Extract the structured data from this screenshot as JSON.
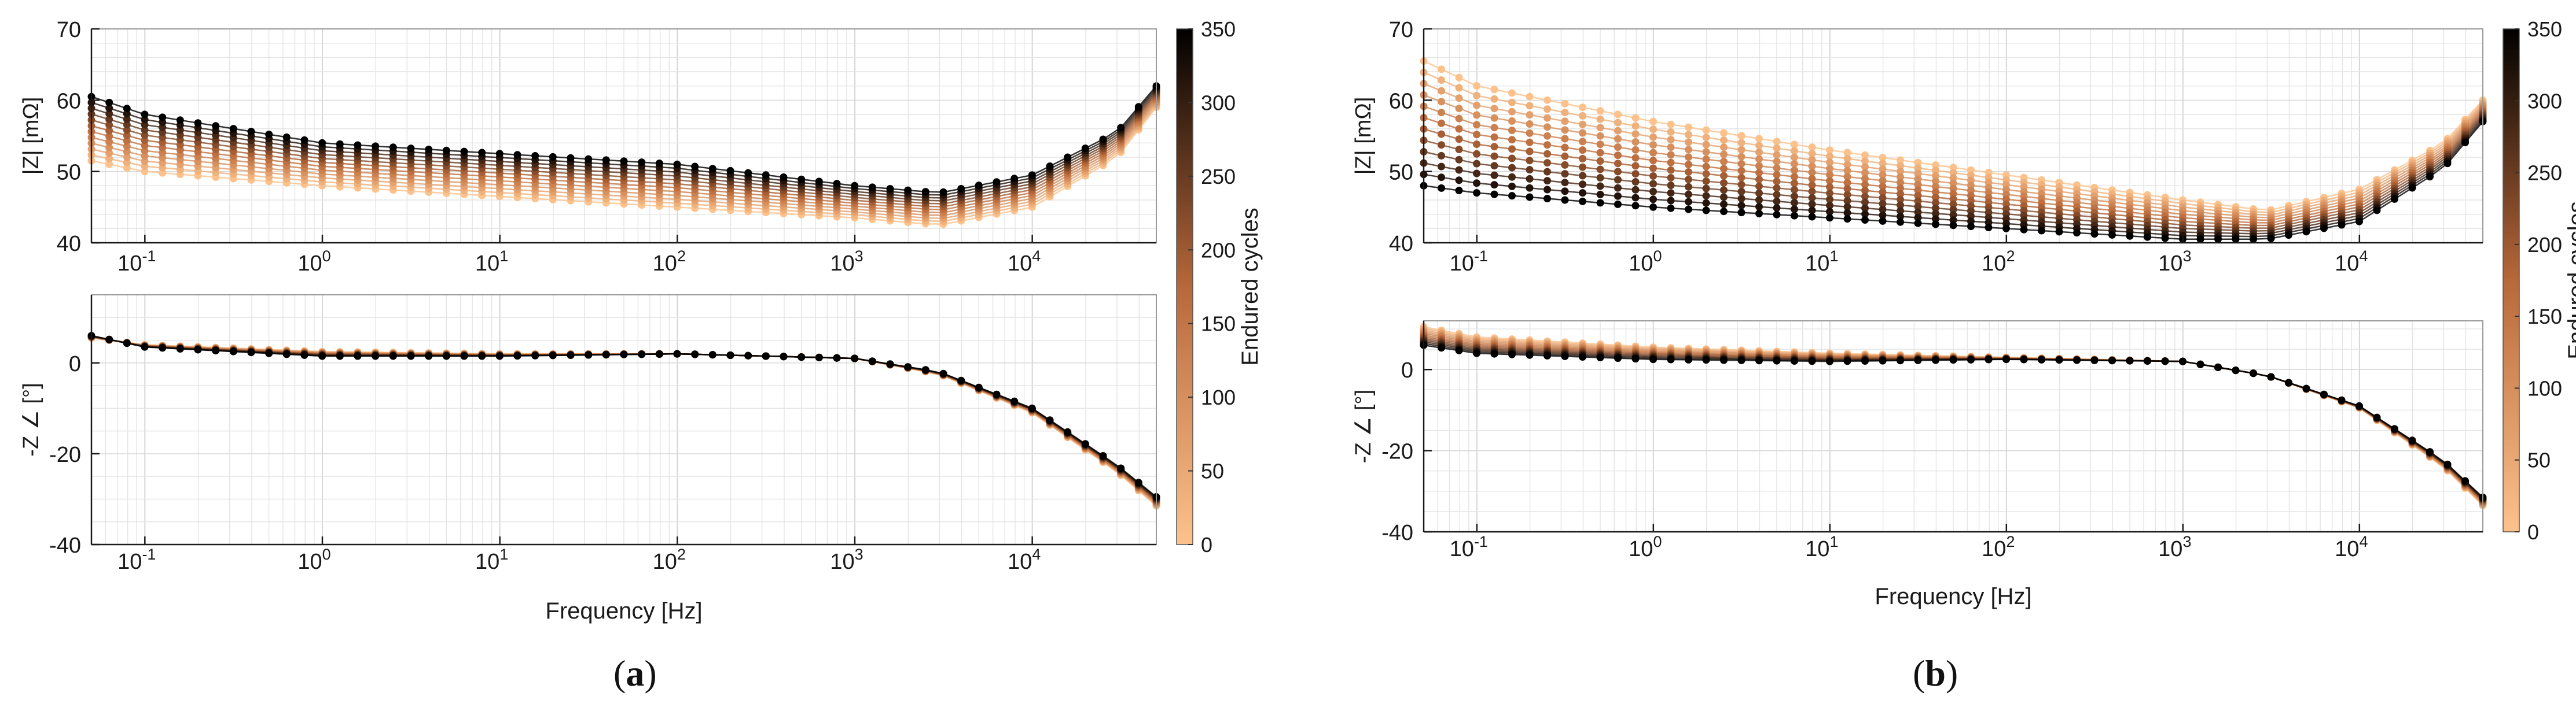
{
  "figure": {
    "subfigure_labels": [
      "a",
      "b"
    ]
  },
  "colors": {
    "cycle_low": "#fdc28c",
    "cycle_mid": "#b8683a",
    "cycle_high": "#000000",
    "grid": "#e4e4e4",
    "axis": "#1a1a1a"
  },
  "chart_data": [
    {
      "id": "a",
      "type": "line",
      "panels": [
        {
          "name": "magnitude",
          "ylabel": "|Z| [mΩ]",
          "xlabel": "",
          "xscale": "log",
          "xlim": [
            0.05,
            50000
          ],
          "ylim": [
            40,
            70
          ],
          "yticks": [
            40,
            50,
            60,
            70
          ],
          "grid": true,
          "envelope": {
            "x": [
              0.05,
              0.1,
              1,
              10,
              100,
              1000,
              3000,
              10000,
              30000,
              50000
            ],
            "cycle_0": [
              51.5,
              50.0,
              48.0,
              46.5,
              45.0,
              43.5,
              42.5,
              45.0,
              52.0,
              59.0
            ],
            "cycle_350": [
              60.5,
              58.0,
              54.0,
              52.5,
              51.0,
              48.0,
              47.0,
              49.5,
              55.5,
              62.0
            ]
          }
        },
        {
          "name": "phase",
          "ylabel": "-Z ∠ [°]",
          "xlabel": "Frequency [Hz]",
          "xscale": "log",
          "xlim": [
            0.05,
            50000
          ],
          "ylim": [
            -40,
            15
          ],
          "yticks": [
            -40,
            -20,
            0
          ],
          "grid": true,
          "envelope": {
            "x": [
              0.05,
              0.1,
              1,
              10,
              100,
              1000,
              3000,
              10000,
              30000,
              50000
            ],
            "cycle_0": [
              5.5,
              4.0,
              2.5,
              2.0,
              2.0,
              1.0,
              -2.5,
              -11.0,
              -24.0,
              -31.5
            ],
            "cycle_350": [
              6.0,
              3.5,
              1.5,
              1.5,
              2.0,
              1.0,
              -2.0,
              -10.0,
              -22.5,
              -29.5
            ]
          }
        }
      ],
      "colorbar": {
        "label": "Endured cycles",
        "range": [
          0,
          350
        ],
        "ticks": [
          0,
          50,
          100,
          150,
          200,
          250,
          300,
          350
        ]
      },
      "xtick_labels": [
        "10-1",
        "100",
        "101",
        "102",
        "103",
        "104"
      ],
      "n_cycle_curves": 12
    },
    {
      "id": "b",
      "type": "line",
      "panels": [
        {
          "name": "magnitude",
          "ylabel": "|Z| [mΩ]",
          "xlabel": "",
          "xscale": "log",
          "xlim": [
            0.05,
            50000
          ],
          "ylim": [
            40,
            70
          ],
          "yticks": [
            40,
            50,
            60,
            70
          ],
          "grid": true,
          "envelope": {
            "x": [
              0.05,
              0.1,
              1,
              10,
              100,
              1000,
              3000,
              10000,
              30000,
              50000
            ],
            "cycle_0": [
              65.5,
              62.0,
              57.0,
              53.0,
              49.5,
              46.0,
              44.5,
              47.5,
              54.0,
              60.0
            ],
            "cycle_350": [
              48.0,
              47.0,
              45.0,
              43.5,
              42.0,
              40.5,
              40.5,
              43.0,
              50.5,
              57.0
            ]
          }
        },
        {
          "name": "phase",
          "ylabel": "-Z ∠ [°]",
          "xlabel": "Frequency [Hz]",
          "xscale": "log",
          "xlim": [
            0.05,
            50000
          ],
          "ylim": [
            -40,
            12
          ],
          "yticks": [
            -40,
            -20,
            0
          ],
          "grid": true,
          "envelope": {
            "x": [
              0.05,
              0.1,
              1,
              10,
              100,
              1000,
              3000,
              10000,
              30000,
              50000
            ],
            "cycle_0": [
              10.5,
              8.0,
              5.5,
              4.0,
              3.0,
              2.0,
              -1.5,
              -9.5,
              -24.0,
              -33.5
            ],
            "cycle_350": [
              6.0,
              4.0,
              2.5,
              2.0,
              2.5,
              2.0,
              -1.5,
              -9.0,
              -22.5,
              -31.5
            ]
          }
        }
      ],
      "colorbar": {
        "label": "Endured cycles",
        "range": [
          0,
          350
        ],
        "ticks": [
          0,
          50,
          100,
          150,
          200,
          250,
          300,
          350
        ]
      },
      "xtick_labels": [
        "10-1",
        "100",
        "101",
        "102",
        "103",
        "104"
      ],
      "n_cycle_curves": 12
    }
  ]
}
